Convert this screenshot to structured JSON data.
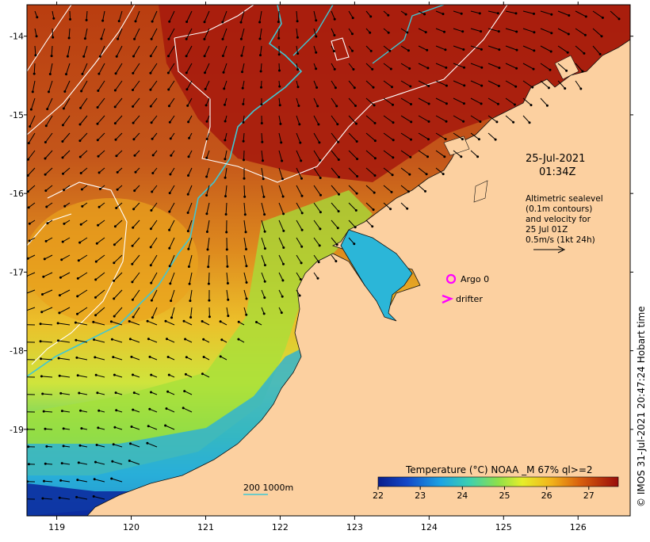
{
  "map": {
    "lon_range": [
      118.6,
      126.7
    ],
    "lat_range": [
      -20.1,
      -13.6
    ],
    "lon_ticks": [
      "119",
      "120",
      "121",
      "122",
      "123",
      "124",
      "125",
      "126"
    ],
    "lat_ticks": [
      "-14",
      "-15",
      "-16",
      "-17",
      "-18",
      "-19"
    ],
    "land_color": "#fcd0a0",
    "timestamp": {
      "date": "25-Jul-2021",
      "time": "01:34Z"
    },
    "altimetry_note": {
      "line1": "Altimetric sealevel",
      "line2": "(0.1m contours)",
      "line3": "and velocity for",
      "line4": "25 Jul 01Z",
      "line5": "0.5m/s (1kt 24h)"
    },
    "legend": {
      "argo_label": "Argo 0",
      "drifter_label": "drifter",
      "marker_color": "#ff00ff"
    },
    "depth_scale": {
      "label": "200  1000m",
      "color": "#3fc7d4"
    },
    "colorbar": {
      "title": "Temperature (°C) NOAA _M 67% ql>=2",
      "range": [
        22,
        27.7
      ],
      "ticks": [
        "22",
        "23",
        "24",
        "25",
        "26",
        "27"
      ]
    },
    "credit": "© IMOS 31-Jul-2021 20:47:24 Hobart time"
  }
}
